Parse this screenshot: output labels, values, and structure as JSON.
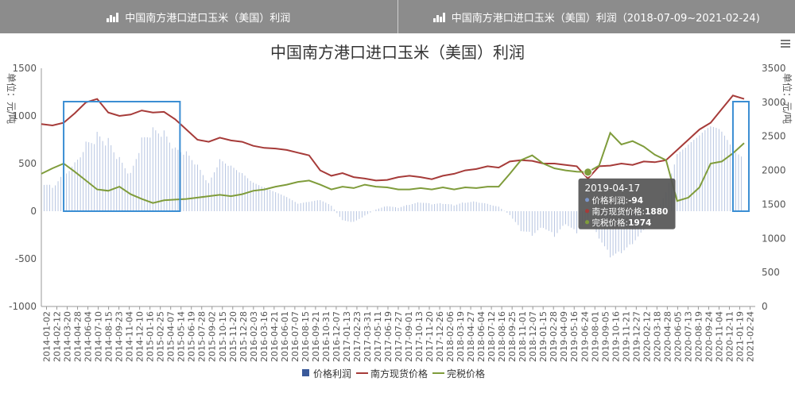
{
  "tabs": [
    {
      "label": "中国南方港口进口玉米（美国）利润"
    },
    {
      "label": "中国南方港口进口玉米（美国）利润（2018-07-09~2021-02-24)"
    }
  ],
  "menu_icon": "hamburger-menu-icon",
  "chart_data": {
    "type": "bar+line",
    "title": "中国南方港口进口玉米（美国）利润",
    "left_axis": {
      "label": "单位：元/吨",
      "min": -1000,
      "max": 1500,
      "ticks": [
        1500,
        1000,
        500,
        0,
        -500,
        -1000
      ]
    },
    "right_axis": {
      "label": "单位：元/吨",
      "min": 0,
      "max": 3500,
      "ticks": [
        3500,
        3000,
        2500,
        2000,
        1500,
        1000,
        500,
        0
      ]
    },
    "x_ticks": [
      "2014-01-02",
      "2014-02-12",
      "2014-03-20",
      "2014-04-28",
      "2014-06-04",
      "2014-07-10",
      "2014-08-15",
      "2014-09-23",
      "2014-11-04",
      "2014-12-10",
      "2015-01-16",
      "2015-02-25",
      "2015-04-07",
      "2015-05-14",
      "2015-06-19",
      "2015-07-28",
      "2015-09-02",
      "2015-10-15",
      "2015-11-20",
      "2015-12-28",
      "2016-02-03",
      "2016-03-16",
      "2016-04-21",
      "2016-06-01",
      "2016-07-07",
      "2016-08-15",
      "2016-09-21",
      "2016-10-31",
      "2016-12-07",
      "2017-01-13",
      "2017-02-23",
      "2017-03-31",
      "2017-05-11",
      "2017-06-19",
      "2017-07-27",
      "2017-09-01",
      "2017-10-13",
      "2017-11-20",
      "2017-12-26",
      "2018-02-06",
      "2018-03-19",
      "2018-04-27",
      "2018-06-04",
      "2018-07-12",
      "2018-08-16",
      "2018-09-25",
      "2018-11-01",
      "2018-12-07",
      "2019-01-15",
      "2019-02-28",
      "2019-04-09",
      "2019-05-16",
      "2019-06-24",
      "2019-08-01",
      "2019-09-05",
      "2019-10-16",
      "2019-11-21",
      "2019-12-27",
      "2020-02-12",
      "2020-03-18",
      "2020-04-28",
      "2020-06-05",
      "2020-07-13",
      "2020-08-19",
      "2020-09-24",
      "2020-11-04",
      "2020-12-11",
      "2021-01-19",
      "2021-02-24"
    ],
    "series": [
      {
        "name": "价格利润",
        "type": "bar",
        "axis": "left",
        "color": "#7b95c9",
        "points": [
          [
            0,
            380
          ],
          [
            2,
            330
          ],
          [
            4,
            500
          ],
          [
            6,
            650
          ],
          [
            8,
            900
          ],
          [
            10,
            1000
          ],
          [
            12,
            900
          ],
          [
            14,
            650
          ],
          [
            16,
            450
          ],
          [
            18,
            850
          ],
          [
            20,
            950
          ],
          [
            22,
            900
          ],
          [
            24,
            700
          ],
          [
            26,
            650
          ],
          [
            28,
            500
          ],
          [
            30,
            300
          ],
          [
            32,
            550
          ],
          [
            34,
            480
          ],
          [
            36,
            400
          ],
          [
            38,
            300
          ],
          [
            40,
            250
          ],
          [
            42,
            200
          ],
          [
            44,
            150
          ],
          [
            46,
            80
          ],
          [
            48,
            100
          ],
          [
            50,
            120
          ],
          [
            52,
            60
          ],
          [
            54,
            -100
          ],
          [
            56,
            -120
          ],
          [
            58,
            -50
          ],
          [
            60,
            20
          ],
          [
            62,
            60
          ],
          [
            64,
            40
          ],
          [
            66,
            80
          ],
          [
            68,
            110
          ],
          [
            70,
            90
          ],
          [
            72,
            100
          ],
          [
            74,
            80
          ],
          [
            76,
            120
          ],
          [
            78,
            130
          ],
          [
            80,
            100
          ],
          [
            82,
            60
          ],
          [
            84,
            -50
          ],
          [
            86,
            -250
          ],
          [
            88,
            -300
          ],
          [
            90,
            -200
          ],
          [
            92,
            -300
          ],
          [
            94,
            -150
          ],
          [
            96,
            -250
          ],
          [
            98,
            -94
          ],
          [
            100,
            -300
          ],
          [
            102,
            -500
          ],
          [
            104,
            -450
          ],
          [
            106,
            -350
          ],
          [
            108,
            -200
          ],
          [
            110,
            -50
          ],
          [
            112,
            200
          ],
          [
            114,
            600
          ],
          [
            116,
            700
          ],
          [
            118,
            800
          ],
          [
            120,
            900
          ],
          [
            122,
            850
          ],
          [
            124,
            650
          ],
          [
            126,
            550
          ]
        ]
      },
      {
        "name": "南方现货价格",
        "type": "line",
        "axis": "right",
        "color": "#a63b39",
        "points": [
          [
            0,
            2680
          ],
          [
            2,
            2660
          ],
          [
            4,
            2700
          ],
          [
            6,
            2840
          ],
          [
            8,
            3000
          ],
          [
            10,
            3050
          ],
          [
            12,
            2850
          ],
          [
            14,
            2800
          ],
          [
            16,
            2820
          ],
          [
            18,
            2880
          ],
          [
            20,
            2850
          ],
          [
            22,
            2860
          ],
          [
            24,
            2750
          ],
          [
            26,
            2600
          ],
          [
            28,
            2450
          ],
          [
            30,
            2420
          ],
          [
            32,
            2480
          ],
          [
            34,
            2440
          ],
          [
            36,
            2420
          ],
          [
            38,
            2360
          ],
          [
            40,
            2330
          ],
          [
            42,
            2320
          ],
          [
            44,
            2300
          ],
          [
            46,
            2260
          ],
          [
            48,
            2220
          ],
          [
            50,
            2000
          ],
          [
            52,
            1920
          ],
          [
            54,
            1960
          ],
          [
            56,
            1900
          ],
          [
            58,
            1880
          ],
          [
            60,
            1850
          ],
          [
            62,
            1860
          ],
          [
            64,
            1900
          ],
          [
            66,
            1920
          ],
          [
            68,
            1900
          ],
          [
            70,
            1870
          ],
          [
            72,
            1920
          ],
          [
            74,
            1950
          ],
          [
            76,
            2000
          ],
          [
            78,
            2020
          ],
          [
            80,
            2060
          ],
          [
            82,
            2040
          ],
          [
            84,
            2130
          ],
          [
            86,
            2150
          ],
          [
            88,
            2140
          ],
          [
            90,
            2100
          ],
          [
            92,
            2100
          ],
          [
            94,
            2080
          ],
          [
            96,
            2060
          ],
          [
            98,
            1880
          ],
          [
            100,
            2060
          ],
          [
            102,
            2070
          ],
          [
            104,
            2100
          ],
          [
            106,
            2080
          ],
          [
            108,
            2130
          ],
          [
            110,
            2120
          ],
          [
            112,
            2150
          ],
          [
            114,
            2300
          ],
          [
            116,
            2450
          ],
          [
            118,
            2600
          ],
          [
            120,
            2700
          ],
          [
            122,
            2900
          ],
          [
            124,
            3100
          ],
          [
            126,
            3050
          ]
        ]
      },
      {
        "name": "完税价格",
        "type": "line",
        "axis": "right",
        "color": "#7f9c3b",
        "points": [
          [
            0,
            1950
          ],
          [
            2,
            2030
          ],
          [
            4,
            2100
          ],
          [
            6,
            1980
          ],
          [
            8,
            1850
          ],
          [
            10,
            1720
          ],
          [
            12,
            1700
          ],
          [
            14,
            1760
          ],
          [
            16,
            1650
          ],
          [
            18,
            1580
          ],
          [
            20,
            1520
          ],
          [
            22,
            1560
          ],
          [
            24,
            1570
          ],
          [
            26,
            1580
          ],
          [
            28,
            1600
          ],
          [
            30,
            1620
          ],
          [
            32,
            1640
          ],
          [
            34,
            1620
          ],
          [
            36,
            1650
          ],
          [
            38,
            1700
          ],
          [
            40,
            1720
          ],
          [
            42,
            1760
          ],
          [
            44,
            1790
          ],
          [
            46,
            1830
          ],
          [
            48,
            1850
          ],
          [
            50,
            1790
          ],
          [
            52,
            1720
          ],
          [
            54,
            1760
          ],
          [
            56,
            1740
          ],
          [
            58,
            1790
          ],
          [
            60,
            1760
          ],
          [
            62,
            1750
          ],
          [
            64,
            1720
          ],
          [
            66,
            1720
          ],
          [
            68,
            1740
          ],
          [
            70,
            1720
          ],
          [
            72,
            1750
          ],
          [
            74,
            1720
          ],
          [
            76,
            1750
          ],
          [
            78,
            1740
          ],
          [
            80,
            1760
          ],
          [
            82,
            1760
          ],
          [
            84,
            1950
          ],
          [
            86,
            2150
          ],
          [
            88,
            2220
          ],
          [
            90,
            2100
          ],
          [
            92,
            2030
          ],
          [
            94,
            2000
          ],
          [
            96,
            1980
          ],
          [
            98,
            1974
          ],
          [
            100,
            2070
          ],
          [
            102,
            2550
          ],
          [
            104,
            2380
          ],
          [
            106,
            2430
          ],
          [
            108,
            2350
          ],
          [
            110,
            2230
          ],
          [
            112,
            2150
          ],
          [
            114,
            1550
          ],
          [
            116,
            1600
          ],
          [
            118,
            1750
          ],
          [
            120,
            2100
          ],
          [
            122,
            2130
          ],
          [
            124,
            2250
          ],
          [
            126,
            2400
          ]
        ]
      }
    ],
    "highlight_boxes": [
      [
        4,
        24
      ],
      [
        124,
        126
      ]
    ],
    "legend": [
      "价格利润",
      "南方现货价格",
      "完税价格"
    ],
    "legend_position": "bottom",
    "grid": false,
    "tooltip": {
      "title": "2019-04-17",
      "rows": [
        {
          "label": "价格利润:",
          "value": "-94"
        },
        {
          "label": "南方现货价格:",
          "value": "1880"
        },
        {
          "label": "完税价格:",
          "value": "1974"
        }
      ]
    }
  }
}
